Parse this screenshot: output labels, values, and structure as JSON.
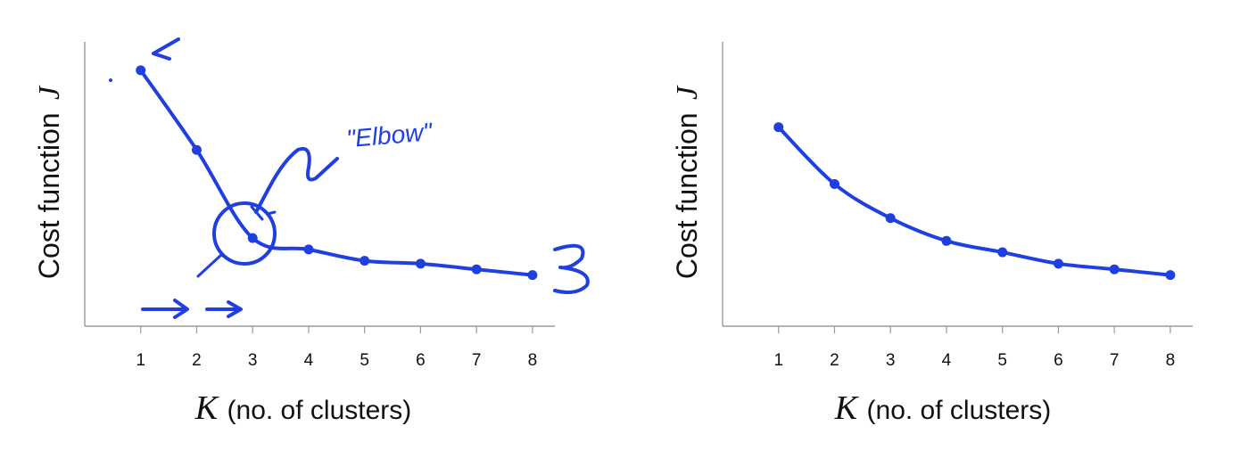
{
  "chart_data": [
    {
      "type": "line",
      "xlabel": {
        "var": "K",
        "rest": "(no. of clusters)"
      },
      "ylabel": {
        "rest": "Cost function",
        "var": "J"
      },
      "x_ticks": [
        "1",
        "2",
        "3",
        "4",
        "5",
        "6",
        "7",
        "8"
      ],
      "xlim": [
        0,
        8.4
      ],
      "ylim": [
        0,
        10
      ],
      "grid": false,
      "series": [
        {
          "x": [
            1,
            2,
            3,
            4,
            5,
            6,
            7,
            8
          ],
          "values": [
            9.0,
            6.2,
            3.1,
            2.7,
            2.3,
            2.2,
            2.0,
            1.8
          ]
        }
      ],
      "annotations": {
        "elbow_text": "\"Elbow\""
      },
      "color": "#1f3fe0"
    },
    {
      "type": "line",
      "xlabel": {
        "var": "K",
        "rest": "(no. of clusters)"
      },
      "ylabel": {
        "rest": "Cost function",
        "var": "J"
      },
      "x_ticks": [
        "1",
        "2",
        "3",
        "4",
        "5",
        "6",
        "7",
        "8"
      ],
      "xlim": [
        0,
        8.4
      ],
      "ylim": [
        0,
        10
      ],
      "grid": false,
      "series": [
        {
          "x": [
            1,
            2,
            3,
            4,
            5,
            6,
            7,
            8
          ],
          "values": [
            7.0,
            5.0,
            3.8,
            3.0,
            2.6,
            2.2,
            2.0,
            1.8
          ]
        }
      ],
      "color": "#1f3fe0"
    }
  ]
}
